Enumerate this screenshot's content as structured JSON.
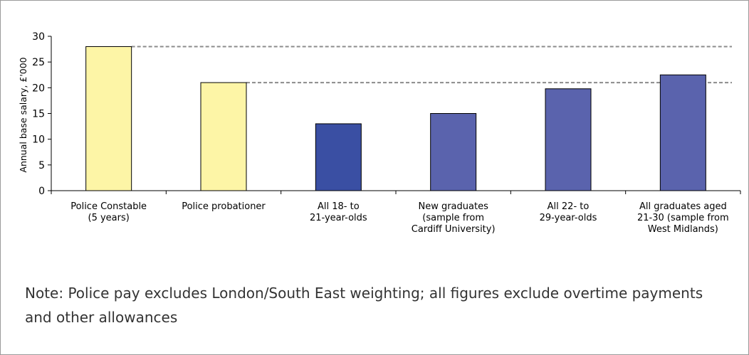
{
  "chart_data": {
    "type": "bar",
    "ylabel": "Annual base salary, £'000",
    "ylim": [
      0,
      30
    ],
    "yticks": [
      "0",
      "5",
      "10",
      "15",
      "20",
      "25",
      "30"
    ],
    "categories": [
      [
        "Police Constable",
        "(5 years)"
      ],
      [
        "Police probationer"
      ],
      [
        "All 18- to",
        "21-year-olds"
      ],
      [
        "New graduates",
        "(sample from",
        "Cardiff University)"
      ],
      [
        "All 22- to",
        "29-year-olds"
      ],
      [
        "All graduates aged",
        "21-30  (sample from",
        "West Midlands)"
      ]
    ],
    "values": [
      28,
      21,
      13,
      15,
      19.8,
      22.5
    ],
    "bar_colors": [
      "#fdf5a6",
      "#fdf5a6",
      "#3a4fa3",
      "#5a63ad",
      "#5a63ad",
      "#5a63ad"
    ],
    "reference_lines": [
      {
        "value": 28,
        "from_category": 0
      },
      {
        "value": 21,
        "from_category": 1
      }
    ],
    "grid": false,
    "legend": "none"
  },
  "note": "Note: Police pay excludes London/South East weighting; all figures exclude overtime payments and other allowances"
}
